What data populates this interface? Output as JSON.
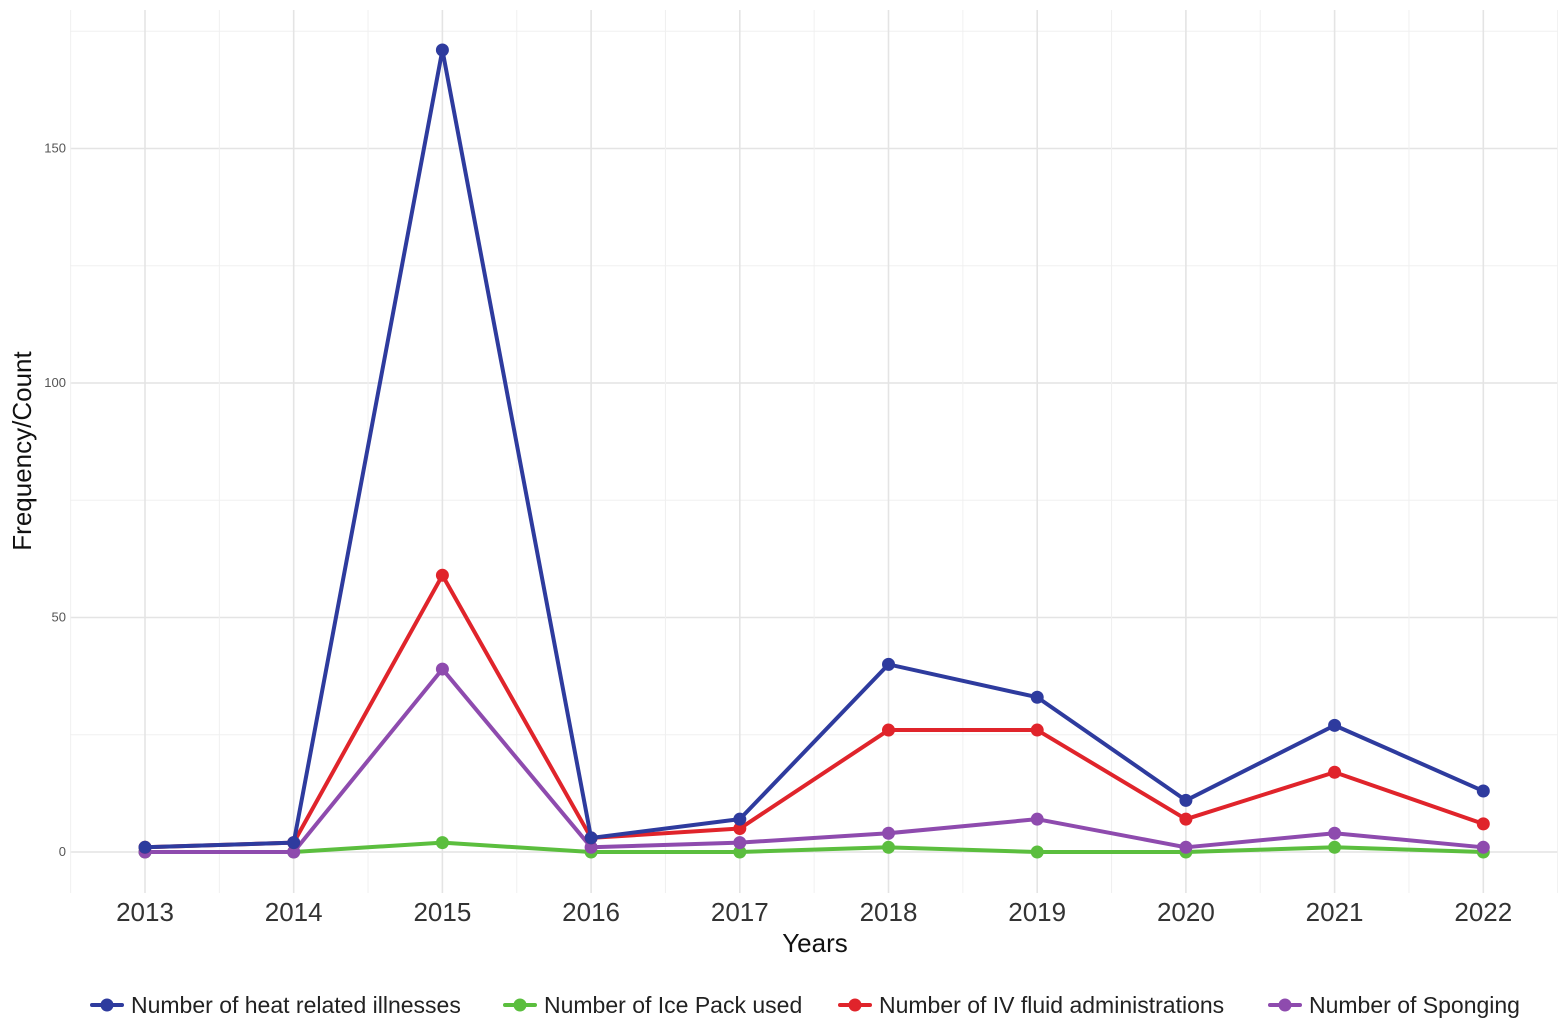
{
  "chart_data": {
    "type": "line",
    "title": "",
    "xlabel": "Years",
    "ylabel": "Frequency/Count",
    "x": [
      "2013",
      "2014",
      "2015",
      "2016",
      "2017",
      "2018",
      "2019",
      "2020",
      "2021",
      "2022"
    ],
    "ylim": [
      -7,
      177
    ],
    "yticks": [
      0,
      50,
      100,
      150
    ],
    "grid": true,
    "legend_position": "bottom",
    "series": [
      {
        "name": "Number of heat related illnesses",
        "color": "#2E3B9E",
        "values": [
          1,
          2,
          171,
          3,
          7,
          40,
          33,
          11,
          27,
          13
        ]
      },
      {
        "name": "Number of Ice Pack used",
        "color": "#5BBE3E",
        "values": [
          0,
          0,
          2,
          0,
          0,
          1,
          0,
          0,
          1,
          0
        ]
      },
      {
        "name": "Number of IV fluid administrations",
        "color": "#E0242B",
        "values": [
          1,
          2,
          59,
          3,
          5,
          26,
          26,
          7,
          17,
          6
        ]
      },
      {
        "name": "Number of Sponging",
        "color": "#8E4BAE",
        "values": [
          0,
          0,
          39,
          1,
          2,
          4,
          7,
          1,
          4,
          1
        ]
      }
    ]
  }
}
